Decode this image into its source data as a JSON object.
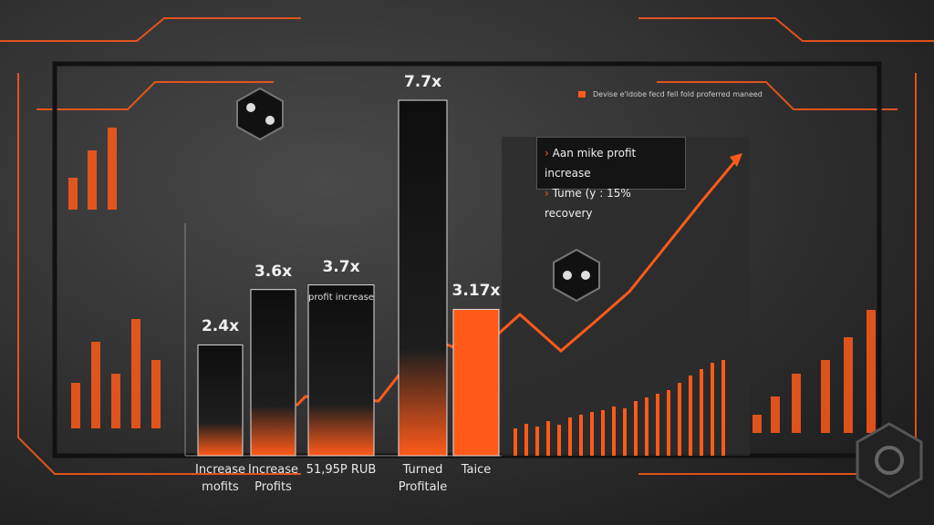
{
  "chart_data": {
    "type": "bar",
    "categories": [
      "Increase mofits",
      "Increase Profits",
      "51,95P RUB",
      "Turned Profitale",
      "Taice"
    ],
    "values": [
      2.4,
      3.6,
      3.7,
      7.7,
      3.17
    ],
    "value_labels": [
      "2.4x",
      "3.6x",
      "3.7x",
      "7.7x",
      "3.17x"
    ],
    "colors": [
      "#1a1a1a",
      "#1a1a1a",
      "#121212",
      "#1a1a1a",
      "#ff5a1a"
    ],
    "annotation": "profit increase",
    "legend": "Devise e'ldobe fecd fell fold proferred maneed",
    "callout": [
      "Aan mike profit increase",
      "Tume (y : 15% recovery"
    ]
  }
}
